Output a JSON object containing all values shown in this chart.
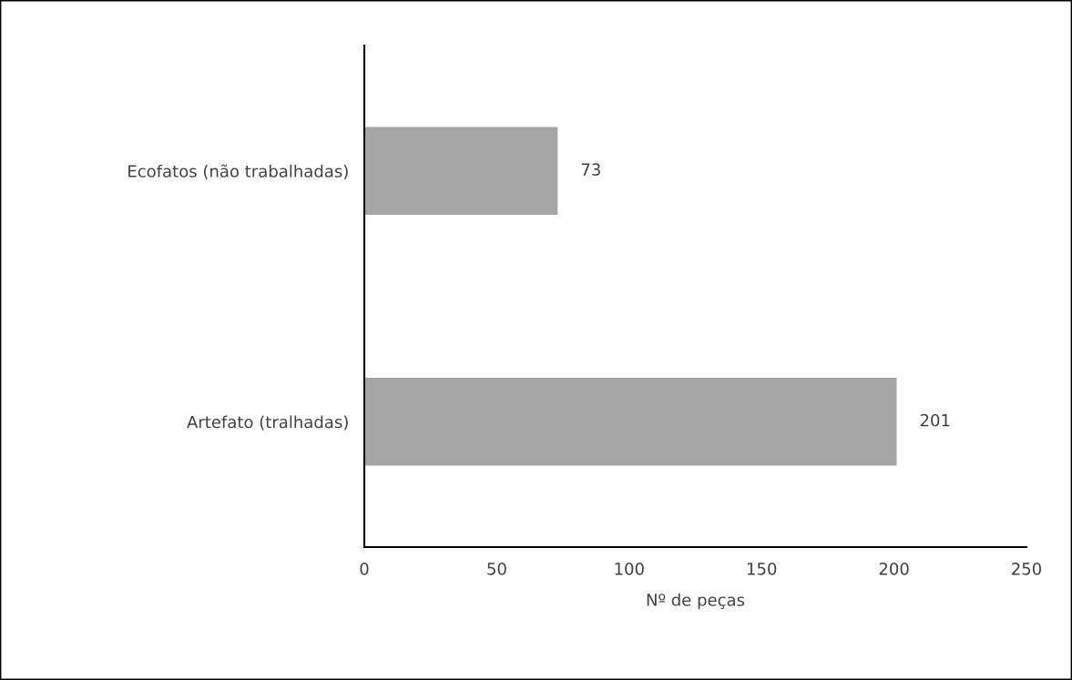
{
  "chart_data": {
    "type": "bar",
    "orientation": "horizontal",
    "xlabel": "Nº de peças",
    "categories": [
      "Ecofatos (não trabalhadas)",
      "Artefato (tralhadas)"
    ],
    "values": [
      73,
      201
    ],
    "color": "#a5a5a5",
    "xlim": [
      0,
      250
    ],
    "xticks": [
      0,
      50,
      100,
      150,
      200,
      250
    ],
    "data_labels": true,
    "grid": false,
    "legend": false
  }
}
